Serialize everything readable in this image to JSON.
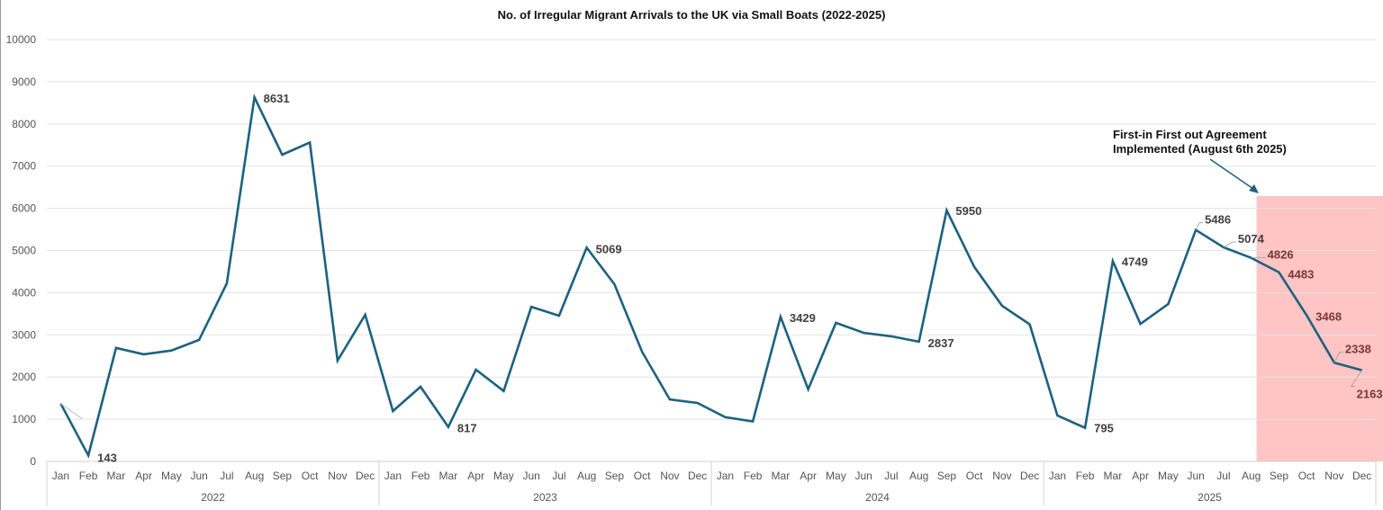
{
  "chart_data": {
    "type": "line",
    "title": "No. of Irregular Migrant Arrivals to the UK via Small Boats (2022-2025)",
    "xlabel": "",
    "ylabel": "",
    "ylim": [
      0,
      10000
    ],
    "yticks": [
      0,
      1000,
      2000,
      3000,
      4000,
      5000,
      6000,
      7000,
      8000,
      9000,
      10000
    ],
    "grid": true,
    "legend": "none",
    "years": [
      "2022",
      "2023",
      "2024",
      "2025"
    ],
    "months": [
      "Jan",
      "Feb",
      "Mar",
      "Apr",
      "May",
      "Jun",
      "Jul",
      "Aug",
      "Sep",
      "Oct",
      "Nov",
      "Dec"
    ],
    "series": [
      {
        "color": "#1d6180",
        "values": [
          1370,
          143,
          2690,
          2540,
          2630,
          2880,
          4220,
          8631,
          7270,
          7560,
          2390,
          3475,
          1195,
          1770,
          817,
          2175,
          1670,
          3665,
          3455,
          5069,
          4200,
          2600,
          1470,
          1385,
          1050,
          949,
          3429,
          1710,
          3285,
          3050,
          2965,
          2837,
          5950,
          4610,
          3690,
          3250,
          1090,
          795,
          4749,
          3260,
          3730,
          5486,
          5074,
          4826,
          4483,
          3468,
          2338,
          2163
        ]
      }
    ],
    "data_labels": [
      {
        "index": 1,
        "text": "143"
      },
      {
        "index": 7,
        "text": "8631"
      },
      {
        "index": 14,
        "text": "817"
      },
      {
        "index": 19,
        "text": "5069"
      },
      {
        "index": 26,
        "text": "3429"
      },
      {
        "index": 31,
        "text": "2837"
      },
      {
        "index": 32,
        "text": "5950"
      },
      {
        "index": 37,
        "text": "795"
      },
      {
        "index": 38,
        "text": "4749"
      },
      {
        "index": 41,
        "text": "5486"
      },
      {
        "index": 42,
        "text": "5074"
      },
      {
        "index": 43,
        "text": "4826"
      },
      {
        "index": 44,
        "text": "4483"
      },
      {
        "index": 45,
        "text": "3468"
      },
      {
        "index": 46,
        "text": "2338"
      },
      {
        "index": 47,
        "text": "2163"
      }
    ],
    "annotation": {
      "lines": [
        "First-in First out Agreement",
        "Implemented (August 6th 2025)"
      ],
      "highlight_from": "Aug 2025",
      "highlight_color": "#ffc4c4"
    }
  }
}
